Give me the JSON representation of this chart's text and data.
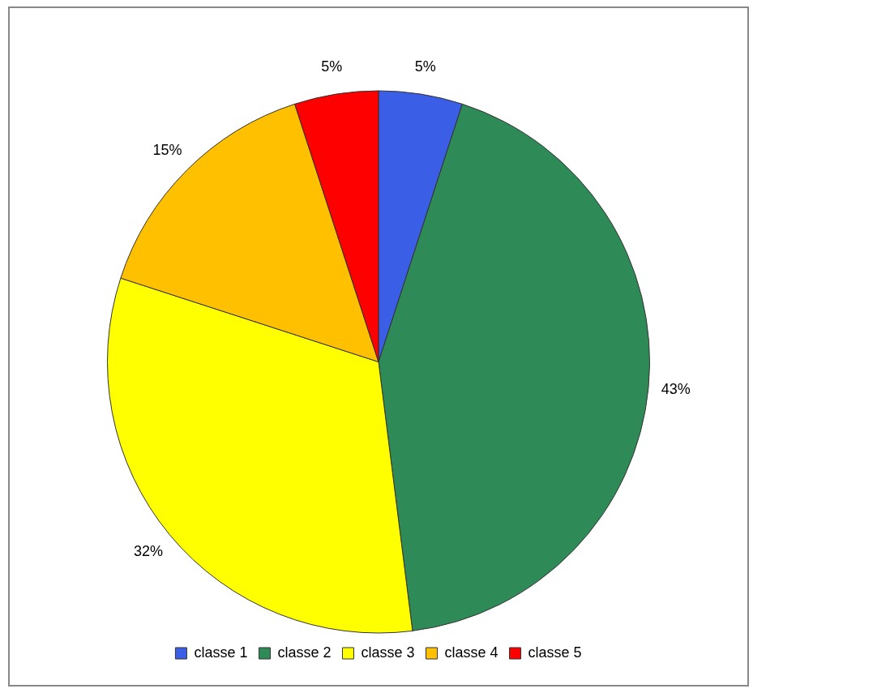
{
  "chart_data": {
    "type": "pie",
    "categories": [
      "classe 1",
      "classe 2",
      "classe 3",
      "classe 4",
      "classe 5"
    ],
    "values": [
      5,
      43,
      32,
      15,
      5
    ],
    "colors": [
      "#3b5ee6",
      "#2e8b57",
      "#ffff00",
      "#ffc000",
      "#ff0000"
    ],
    "value_labels": [
      "5%",
      "43%",
      "32%",
      "15%",
      "5%"
    ],
    "legend": "bottom"
  }
}
